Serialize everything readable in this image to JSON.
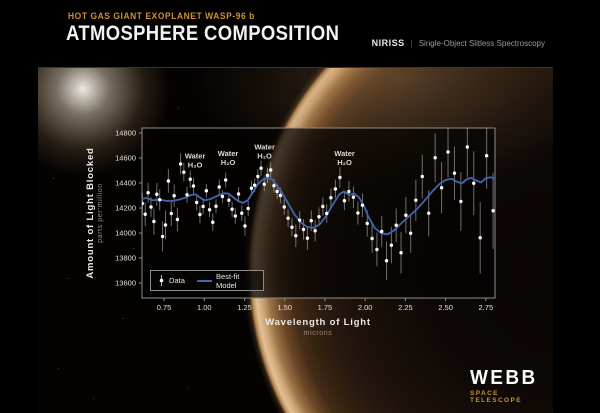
{
  "header": {
    "kicker": "HOT GAS GIANT EXOPLANET WASP-96 b",
    "title": "ATMOSPHERE COMPOSITION",
    "instrument": "NIRISS",
    "divider": "|",
    "instrument_mode": "Single-Object Slitless Spectroscopy"
  },
  "branding": {
    "logo": "WEBB",
    "logo_sub": "SPACE TELESCOPE"
  },
  "colors": {
    "accent_gold": "#d0912f",
    "model_blue": "#3f66b0",
    "data_point": "#ffffff",
    "error_bar": "rgba(215,215,215,0.5)",
    "frame": "#8d8d8d",
    "tick_text": "#e5e0d8",
    "annotation_text": "#ddd8d0"
  },
  "chart_data": {
    "type": "scatter",
    "xlabel": "Wavelength of Light",
    "xlabel_sub": "microns",
    "ylabel": "Amount of Light Blocked",
    "ylabel_sub": "parts per million",
    "xlim": [
      0.613,
      2.807
    ],
    "ylim": [
      13480,
      14840
    ],
    "xticks": [
      0.75,
      1.0,
      1.25,
      1.5,
      1.75,
      2.0,
      2.25,
      2.5,
      2.75
    ],
    "yticks": [
      13600,
      13800,
      14000,
      14200,
      14400,
      14600,
      14800
    ],
    "grid": false,
    "legend": {
      "position": "lower-left",
      "data_label": "Data",
      "model_label": "Best-fit Model"
    },
    "annotations": [
      {
        "label": "Water",
        "formula": "H₂O",
        "x": 0.943,
        "y": 14590
      },
      {
        "label": "Water",
        "formula": "H₂O",
        "x": 1.148,
        "y": 14610
      },
      {
        "label": "Water",
        "formula": "H₂O",
        "x": 1.375,
        "y": 14660
      },
      {
        "label": "Water",
        "formula": "H₂O",
        "x": 1.872,
        "y": 14610
      }
    ],
    "series": [
      {
        "name": "Data",
        "type": "scatter",
        "point_format": [
          "wavelength_microns",
          "light_blocked_ppm",
          "error_ppm"
        ],
        "points": [
          [
            0.615,
            14236,
            85
          ],
          [
            0.633,
            14150,
            95
          ],
          [
            0.651,
            14322,
            80
          ],
          [
            0.669,
            14208,
            80
          ],
          [
            0.687,
            14092,
            105
          ],
          [
            0.705,
            14310,
            90
          ],
          [
            0.723,
            14266,
            85
          ],
          [
            0.741,
            13972,
            120
          ],
          [
            0.759,
            14064,
            115
          ],
          [
            0.777,
            14416,
            95
          ],
          [
            0.795,
            14156,
            100
          ],
          [
            0.813,
            14298,
            90
          ],
          [
            0.833,
            14108,
            95
          ],
          [
            0.853,
            14552,
            85
          ],
          [
            0.873,
            14486,
            75
          ],
          [
            0.893,
            14306,
            65
          ],
          [
            0.913,
            14430,
            70
          ],
          [
            0.933,
            14376,
            65
          ],
          [
            0.953,
            14244,
            62
          ],
          [
            0.973,
            14148,
            70
          ],
          [
            0.993,
            14212,
            60
          ],
          [
            1.013,
            14338,
            55
          ],
          [
            1.033,
            14186,
            62
          ],
          [
            1.053,
            14086,
            70
          ],
          [
            1.073,
            14214,
            55
          ],
          [
            1.093,
            14368,
            60
          ],
          [
            1.113,
            14292,
            52
          ],
          [
            1.133,
            14424,
            60
          ],
          [
            1.153,
            14262,
            52
          ],
          [
            1.173,
            14190,
            60
          ],
          [
            1.193,
            14136,
            62
          ],
          [
            1.213,
            14312,
            55
          ],
          [
            1.233,
            14158,
            62
          ],
          [
            1.253,
            14056,
            78
          ],
          [
            1.273,
            14196,
            60
          ],
          [
            1.293,
            14358,
            62
          ],
          [
            1.313,
            14382,
            55
          ],
          [
            1.333,
            14452,
            60
          ],
          [
            1.353,
            14518,
            62
          ],
          [
            1.373,
            14390,
            55
          ],
          [
            1.393,
            14460,
            60
          ],
          [
            1.413,
            14504,
            62
          ],
          [
            1.433,
            14378,
            55
          ],
          [
            1.453,
            14332,
            60
          ],
          [
            1.473,
            14300,
            62
          ],
          [
            1.497,
            14208,
            62
          ],
          [
            1.521,
            14118,
            70
          ],
          [
            1.545,
            14046,
            72
          ],
          [
            1.569,
            13978,
            90
          ],
          [
            1.593,
            14102,
            72
          ],
          [
            1.617,
            14028,
            82
          ],
          [
            1.641,
            13958,
            92
          ],
          [
            1.665,
            14098,
            82
          ],
          [
            1.689,
            14018,
            85
          ],
          [
            1.713,
            14130,
            75
          ],
          [
            1.737,
            14212,
            72
          ],
          [
            1.761,
            14156,
            75
          ],
          [
            1.787,
            14282,
            72
          ],
          [
            1.815,
            14352,
            75
          ],
          [
            1.843,
            14444,
            82
          ],
          [
            1.871,
            14258,
            75
          ],
          [
            1.899,
            14332,
            82
          ],
          [
            1.927,
            14286,
            85
          ],
          [
            1.955,
            14160,
            92
          ],
          [
            1.983,
            14222,
            95
          ],
          [
            2.013,
            14076,
            105
          ],
          [
            2.043,
            13956,
            115
          ],
          [
            2.073,
            13868,
            135
          ],
          [
            2.103,
            14012,
            125
          ],
          [
            2.133,
            13778,
            155
          ],
          [
            2.163,
            13902,
            145
          ],
          [
            2.193,
            14062,
            135
          ],
          [
            2.223,
            13842,
            165
          ],
          [
            2.253,
            14142,
            145
          ],
          [
            2.283,
            13998,
            155
          ],
          [
            2.315,
            14262,
            165
          ],
          [
            2.355,
            14452,
            175
          ],
          [
            2.395,
            14158,
            185
          ],
          [
            2.435,
            14602,
            195
          ],
          [
            2.475,
            14362,
            205
          ],
          [
            2.515,
            14648,
            205
          ],
          [
            2.555,
            14478,
            215
          ],
          [
            2.595,
            14252,
            235
          ],
          [
            2.635,
            14688,
            245
          ],
          [
            2.675,
            14398,
            255
          ],
          [
            2.715,
            13962,
            285
          ],
          [
            2.755,
            14618,
            265
          ],
          [
            2.795,
            14178,
            305
          ]
        ]
      },
      {
        "name": "Best-fit Model",
        "type": "line",
        "points": [
          [
            0.6,
            14270
          ],
          [
            0.64,
            14280
          ],
          [
            0.68,
            14262
          ],
          [
            0.72,
            14268
          ],
          [
            0.76,
            14258
          ],
          [
            0.8,
            14256
          ],
          [
            0.84,
            14266
          ],
          [
            0.88,
            14282
          ],
          [
            0.92,
            14305
          ],
          [
            0.95,
            14308
          ],
          [
            0.98,
            14278
          ],
          [
            1.0,
            14262
          ],
          [
            1.03,
            14268
          ],
          [
            1.06,
            14284
          ],
          [
            1.09,
            14302
          ],
          [
            1.12,
            14318
          ],
          [
            1.15,
            14316
          ],
          [
            1.18,
            14286
          ],
          [
            1.21,
            14256
          ],
          [
            1.24,
            14240
          ],
          [
            1.27,
            14262
          ],
          [
            1.3,
            14320
          ],
          [
            1.33,
            14384
          ],
          [
            1.36,
            14424
          ],
          [
            1.39,
            14442
          ],
          [
            1.42,
            14430
          ],
          [
            1.45,
            14386
          ],
          [
            1.48,
            14328
          ],
          [
            1.52,
            14240
          ],
          [
            1.56,
            14150
          ],
          [
            1.6,
            14084
          ],
          [
            1.64,
            14048
          ],
          [
            1.68,
            14042
          ],
          [
            1.72,
            14072
          ],
          [
            1.76,
            14140
          ],
          [
            1.8,
            14230
          ],
          [
            1.84,
            14310
          ],
          [
            1.87,
            14334
          ],
          [
            1.9,
            14304
          ],
          [
            1.93,
            14316
          ],
          [
            1.96,
            14288
          ],
          [
            1.99,
            14222
          ],
          [
            2.02,
            14130
          ],
          [
            2.06,
            14040
          ],
          [
            2.1,
            13996
          ],
          [
            2.14,
            13990
          ],
          [
            2.18,
            14022
          ],
          [
            2.22,
            14072
          ],
          [
            2.26,
            14120
          ],
          [
            2.3,
            14164
          ],
          [
            2.34,
            14216
          ],
          [
            2.38,
            14276
          ],
          [
            2.42,
            14336
          ],
          [
            2.46,
            14390
          ],
          [
            2.5,
            14424
          ],
          [
            2.54,
            14434
          ],
          [
            2.57,
            14410
          ],
          [
            2.6,
            14396
          ],
          [
            2.63,
            14428
          ],
          [
            2.66,
            14442
          ],
          [
            2.69,
            14420
          ],
          [
            2.72,
            14404
          ],
          [
            2.75,
            14438
          ],
          [
            2.78,
            14446
          ],
          [
            2.81,
            14432
          ]
        ]
      }
    ]
  }
}
